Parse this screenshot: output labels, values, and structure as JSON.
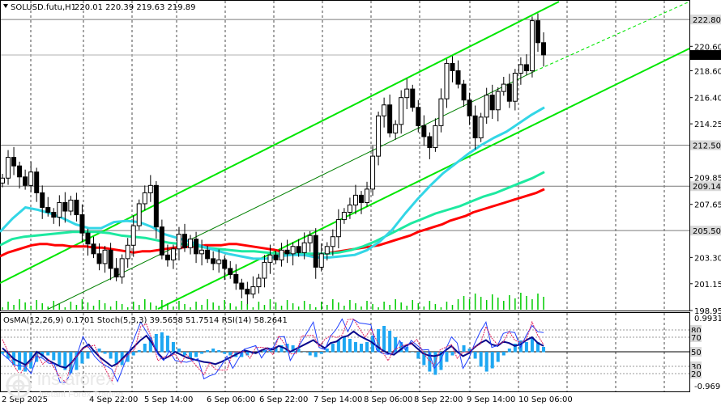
{
  "header": {
    "symbol_label": "SOLUSD.futu,H1",
    "ohlc_label": "220.01 220.39 219.63 219.89"
  },
  "osc_label": {
    "osma": "OsMA(12,26,9) 0.1701",
    "stoch": "Stoch(5,3,3) 39.5658 51.7514",
    "rsi": "RSI(14) 58.2641"
  },
  "brand": {
    "name": "instaforex",
    "tagline": "Instant Forex Trading"
  },
  "chart_data": [
    {
      "type": "candlestick",
      "title": "SOLUSD.futu,H1",
      "ylim": [
        198.95,
        224.0
      ],
      "y_ticks": [
        "222.80",
        "220.60",
        "218.60",
        "216.40",
        "214.25",
        "212.50",
        "209.85",
        "209.14",
        "207.65",
        "205.50",
        "203.30",
        "201.15",
        "198.95"
      ],
      "price_current": 219.89,
      "levels": [
        {
          "value": 222.8,
          "label": "222.80",
          "style": "highlight"
        },
        {
          "value": 219.89,
          "label": "219.89",
          "style": "current"
        },
        {
          "value": 212.5,
          "label": "212.50",
          "style": "highlight"
        },
        {
          "value": 209.14,
          "label": "209.14",
          "style": "highlight"
        },
        {
          "value": 205.5,
          "label": "205.50",
          "style": "highlight"
        }
      ],
      "x_ticks": [
        "2 Sep 2025",
        "4 Sep 22:00",
        "5 Sep 14:00",
        "6 Sep 06:00",
        "6 Sep 22:00",
        "7 Sep 14:00",
        "8 Sep 06:00",
        "8 Sep 22:00",
        "9 Sep 14:00",
        "10 Sep 06:00"
      ],
      "close_series": [
        209.8,
        211.5,
        210.8,
        209.9,
        209.2,
        210.3,
        208.6,
        207.4,
        207.0,
        206.6,
        207.8,
        207.1,
        208.0,
        206.8,
        205.3,
        204.4,
        203.6,
        202.8,
        203.9,
        202.4,
        201.7,
        203.2,
        204.3,
        205.9,
        207.7,
        208.6,
        209.2,
        205.8,
        203.5,
        203.1,
        204.0,
        205.2,
        204.1,
        204.8,
        203.6,
        203.9,
        203.2,
        202.8,
        203.1,
        202.4,
        201.9,
        201.2,
        200.7,
        200.3,
        200.9,
        201.6,
        202.9,
        203.5,
        203.1,
        203.9,
        203.6,
        204.2,
        203.7,
        204.5,
        205.1,
        202.5,
        203.6,
        204.2,
        205.0,
        206.4,
        207.0,
        207.6,
        208.4,
        207.8,
        208.9,
        211.6,
        214.9,
        215.8,
        213.5,
        214.2,
        216.4,
        217.1,
        215.6,
        214.1,
        213.2,
        212.3,
        214.1,
        216.3,
        219.2,
        218.6,
        217.5,
        216.2,
        214.9,
        213.1,
        214.8,
        216.6,
        215.4,
        216.9,
        217.5,
        216.1,
        218.4,
        219.1,
        218.6,
        222.7,
        220.9,
        219.9
      ],
      "series": [
        {
          "name": "",
          "color": "#ff0000",
          "values": [
            203.4,
            203.7,
            203.9,
            204.1,
            204.3,
            204.4,
            204.4,
            204.3,
            204.3,
            204.2,
            204.2,
            204.2,
            204.1,
            204.1,
            204.0,
            203.9,
            203.8,
            203.7,
            203.8,
            203.8,
            203.9,
            204.0,
            204.1,
            204.1,
            204.2,
            204.2,
            204.3,
            204.3,
            204.3,
            204.4,
            204.4,
            204.3,
            204.2,
            204.1,
            204.0,
            203.9,
            203.7,
            203.6,
            203.5,
            203.5,
            203.6,
            203.6,
            203.7,
            203.8,
            203.9,
            204.0,
            204.1,
            204.2,
            204.3,
            204.5,
            204.7,
            204.9,
            205.1,
            205.4,
            205.6,
            205.8,
            206.0,
            206.3,
            206.5,
            206.7,
            207.0,
            207.2,
            207.4,
            207.6,
            207.8,
            208.0,
            208.2,
            208.4,
            208.6,
            208.9
          ]
        },
        {
          "name": "",
          "color": "#1de9a0",
          "values": [
            204.3,
            204.8,
            205.0,
            205.1,
            205.2,
            205.3,
            205.4,
            205.4,
            205.4,
            205.3,
            205.1,
            205.0,
            204.9,
            204.7,
            204.5,
            204.4,
            204.3,
            204.1,
            204.0,
            203.9,
            203.8,
            203.8,
            203.7,
            203.6,
            203.6,
            203.6,
            203.6,
            203.6,
            203.7,
            203.9,
            204.2,
            204.6,
            205.1,
            205.6,
            206.1,
            206.5,
            206.9,
            207.2,
            207.5,
            207.9,
            208.3,
            208.6,
            209.0,
            209.4,
            209.8,
            210.3
          ]
        },
        {
          "name": "",
          "color": "#33d6e6",
          "values": [
            205.4,
            206.5,
            207.4,
            207.2,
            206.9,
            206.5,
            206.0,
            205.7,
            205.7,
            206.2,
            206.3,
            206.2,
            205.8,
            205.2,
            204.9,
            204.6,
            204.2,
            203.9,
            203.6,
            203.4,
            203.2,
            203.2,
            203.4,
            203.5,
            203.5,
            203.3,
            203.3,
            203.4,
            203.5,
            203.9,
            204.6,
            205.6,
            206.9,
            208.1,
            209.2,
            210.2,
            211.0,
            211.8,
            212.5,
            213.1,
            213.6,
            214.3,
            215.0,
            215.6
          ]
        }
      ]
    },
    {
      "type": "histogram+line",
      "title": "OsMA(12,26,9) 0.1701",
      "ylim": [
        -0.9695,
        0.9931
      ],
      "y_ticks": [
        "0.9931",
        "-0.9695"
      ],
      "rsi_levels": [
        80,
        70,
        50,
        30,
        20
      ],
      "level_labels": [
        "80",
        "70",
        "50",
        "30",
        "20"
      ],
      "osma_values": [
        -0.05,
        -0.2,
        -0.4,
        -0.55,
        -0.6,
        -0.5,
        -0.3,
        -0.15,
        -0.1,
        -0.25,
        -0.4,
        -0.55,
        -0.65,
        -0.55,
        -0.35,
        -0.2,
        0.05,
        0.1,
        -0.05,
        -0.2,
        -0.35,
        -0.4,
        -0.3,
        -0.1,
        0.05,
        0.25,
        0.45,
        0.55,
        0.6,
        0.5,
        0.3,
        0.1,
        -0.1,
        -0.2,
        -0.15,
        -0.05,
        0.05,
        0.1,
        0.05,
        -0.05,
        -0.1,
        -0.15,
        -0.15,
        -0.1,
        -0.05,
        0.0,
        0.05,
        0.1,
        0.15,
        0.2,
        0.25,
        0.2,
        0.1,
        0.0,
        -0.1,
        -0.15,
        -0.05,
        0.1,
        0.25,
        0.35,
        0.45,
        0.4,
        0.3,
        0.25,
        0.3,
        0.5,
        0.7,
        0.8,
        0.65,
        0.45,
        0.3,
        0.15,
        0.0,
        -0.2,
        -0.4,
        -0.6,
        -0.7,
        -0.55,
        -0.3,
        -0.1,
        0.0,
        0.2,
        0.1,
        -0.2,
        -0.45,
        -0.6,
        -0.5,
        -0.3,
        -0.1,
        0.1,
        0.25,
        0.35,
        0.3,
        0.45,
        0.3,
        0.15
      ],
      "rsi_values": [
        55,
        48,
        40,
        36,
        32,
        40,
        50,
        45,
        38,
        34,
        30,
        28,
        35,
        45,
        55,
        60,
        50,
        42,
        36,
        30,
        34,
        42,
        50,
        58,
        66,
        72,
        62,
        48,
        40,
        44,
        50,
        46,
        42,
        40,
        38,
        36,
        35,
        33,
        36,
        40,
        44,
        48,
        52,
        50,
        48,
        52,
        55,
        53,
        58,
        55,
        50,
        54,
        58,
        62,
        66,
        60,
        55,
        62,
        64,
        70,
        72,
        78,
        72,
        68,
        64,
        58,
        52,
        48,
        46,
        52,
        58,
        62,
        55,
        48,
        45,
        44,
        46,
        52,
        58,
        50,
        44,
        48,
        56,
        62,
        66,
        60,
        58,
        64,
        62,
        58,
        60,
        66,
        70,
        62,
        58
      ]
    }
  ]
}
